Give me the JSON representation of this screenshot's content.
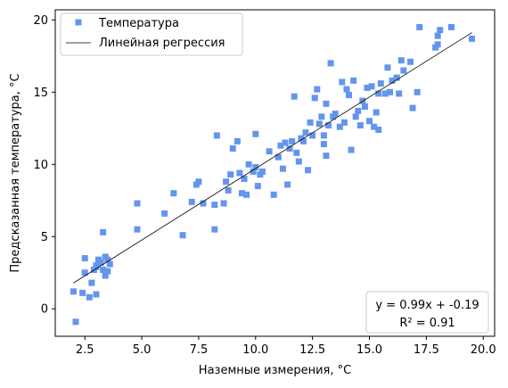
{
  "chart_data": {
    "type": "scatter",
    "xlabel": "Наземные измерения, °C",
    "ylabel": "Предсказанная температура, °C",
    "xlim": [
      1.2,
      20.5
    ],
    "ylim": [
      -1.9,
      20.7
    ],
    "xticks": [
      2.5,
      5.0,
      7.5,
      10.0,
      12.5,
      15.0,
      17.5,
      20.0
    ],
    "xtick_labels": [
      "2.5",
      "5.0",
      "7.5",
      "10.0",
      "12.5",
      "15.0",
      "17.5",
      "20.0"
    ],
    "yticks": [
      0,
      5,
      10,
      15,
      20
    ],
    "ytick_labels": [
      "0",
      "5",
      "10",
      "15",
      "20"
    ],
    "grid": false,
    "legend_position": "top-left",
    "series": [
      {
        "name": "Температура",
        "kind": "scatter",
        "marker": "square",
        "color": "#6495ed",
        "points": [
          [
            2.0,
            1.2
          ],
          [
            2.1,
            -0.9
          ],
          [
            2.4,
            1.1
          ],
          [
            2.5,
            3.5
          ],
          [
            2.5,
            2.5
          ],
          [
            2.7,
            0.8
          ],
          [
            2.8,
            1.8
          ],
          [
            2.9,
            2.7
          ],
          [
            3.0,
            2.9
          ],
          [
            3.0,
            3.0
          ],
          [
            3.0,
            1.0
          ],
          [
            3.1,
            3.4
          ],
          [
            3.2,
            3.2
          ],
          [
            3.3,
            5.3
          ],
          [
            3.3,
            2.7
          ],
          [
            3.4,
            3.6
          ],
          [
            3.4,
            2.3
          ],
          [
            3.5,
            3.4
          ],
          [
            3.5,
            2.6
          ],
          [
            3.6,
            3.1
          ],
          [
            4.8,
            7.3
          ],
          [
            4.8,
            5.5
          ],
          [
            6.0,
            6.6
          ],
          [
            6.4,
            8.0
          ],
          [
            6.8,
            5.1
          ],
          [
            7.2,
            7.4
          ],
          [
            7.4,
            8.6
          ],
          [
            7.5,
            8.8
          ],
          [
            7.7,
            7.3
          ],
          [
            8.2,
            5.5
          ],
          [
            8.2,
            7.2
          ],
          [
            8.3,
            12.0
          ],
          [
            8.6,
            7.3
          ],
          [
            8.7,
            8.8
          ],
          [
            8.8,
            8.2
          ],
          [
            8.9,
            9.3
          ],
          [
            9.0,
            11.1
          ],
          [
            9.2,
            11.6
          ],
          [
            9.3,
            9.4
          ],
          [
            9.4,
            8.0
          ],
          [
            9.5,
            9.0
          ],
          [
            9.6,
            7.9
          ],
          [
            9.7,
            10.0
          ],
          [
            9.9,
            9.5
          ],
          [
            10.0,
            12.1
          ],
          [
            10.0,
            9.8
          ],
          [
            10.1,
            8.5
          ],
          [
            10.2,
            9.3
          ],
          [
            10.3,
            9.5
          ],
          [
            10.6,
            10.9
          ],
          [
            10.8,
            7.9
          ],
          [
            11.0,
            10.5
          ],
          [
            11.1,
            11.3
          ],
          [
            11.2,
            9.7
          ],
          [
            11.3,
            11.5
          ],
          [
            11.4,
            8.6
          ],
          [
            11.5,
            11.1
          ],
          [
            11.6,
            11.6
          ],
          [
            11.7,
            14.7
          ],
          [
            11.8,
            10.8
          ],
          [
            11.9,
            10.2
          ],
          [
            12.0,
            11.8
          ],
          [
            12.1,
            11.6
          ],
          [
            12.2,
            12.2
          ],
          [
            12.3,
            9.6
          ],
          [
            12.4,
            12.9
          ],
          [
            12.5,
            12.0
          ],
          [
            12.6,
            14.6
          ],
          [
            12.7,
            15.2
          ],
          [
            12.8,
            12.8
          ],
          [
            12.9,
            13.3
          ],
          [
            13.0,
            12.0
          ],
          [
            13.0,
            11.4
          ],
          [
            13.1,
            10.6
          ],
          [
            13.1,
            14.2
          ],
          [
            13.2,
            12.7
          ],
          [
            13.3,
            17.0
          ],
          [
            13.4,
            13.3
          ],
          [
            13.5,
            13.5
          ],
          [
            13.7,
            12.6
          ],
          [
            13.8,
            15.7
          ],
          [
            13.9,
            12.9
          ],
          [
            14.0,
            15.2
          ],
          [
            14.1,
            14.8
          ],
          [
            14.2,
            11.0
          ],
          [
            14.3,
            15.8
          ],
          [
            14.4,
            13.3
          ],
          [
            14.5,
            13.7
          ],
          [
            14.6,
            12.7
          ],
          [
            14.7,
            14.4
          ],
          [
            14.8,
            14.0
          ],
          [
            14.9,
            15.3
          ],
          [
            15.0,
            13.0
          ],
          [
            15.1,
            15.4
          ],
          [
            15.2,
            12.6
          ],
          [
            15.3,
            13.6
          ],
          [
            15.4,
            14.9
          ],
          [
            15.4,
            12.4
          ],
          [
            15.5,
            15.6
          ],
          [
            15.7,
            14.9
          ],
          [
            15.8,
            16.7
          ],
          [
            15.9,
            15.0
          ],
          [
            16.0,
            15.8
          ],
          [
            16.2,
            16.0
          ],
          [
            16.3,
            14.9
          ],
          [
            16.4,
            17.2
          ],
          [
            16.5,
            16.5
          ],
          [
            16.8,
            17.1
          ],
          [
            16.9,
            13.9
          ],
          [
            17.1,
            15.0
          ],
          [
            17.2,
            19.5
          ],
          [
            17.9,
            18.1
          ],
          [
            18.0,
            18.9
          ],
          [
            18.0,
            18.3
          ],
          [
            18.1,
            19.3
          ],
          [
            18.6,
            19.5
          ],
          [
            19.5,
            18.7
          ]
        ]
      },
      {
        "name": "Линейная регрессия",
        "kind": "line",
        "color": "#000000",
        "points": [
          [
            2.0,
            1.79
          ],
          [
            19.5,
            19.12
          ]
        ]
      }
    ],
    "annotation": {
      "equation": "y = 0.99x + -0.19",
      "r2_label": "R² = 0.91"
    }
  }
}
